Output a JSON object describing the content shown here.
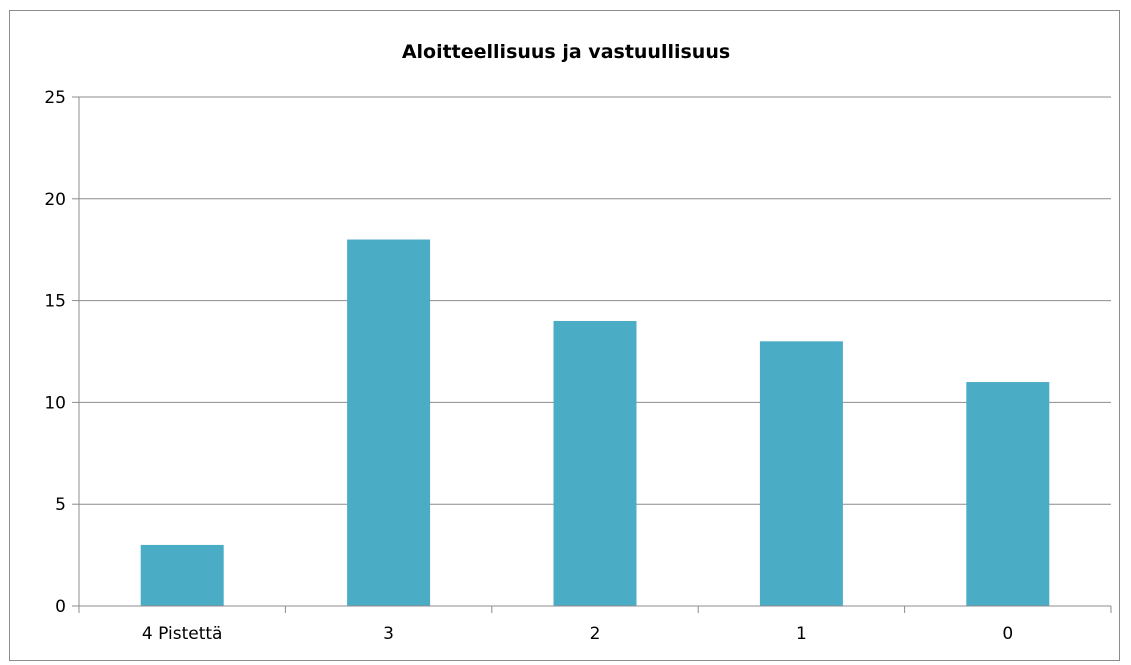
{
  "chart_data": {
    "type": "bar",
    "title": "Aloitteellisuus ja vastuullisuus",
    "xlabel": "",
    "ylabel": "",
    "categories": [
      "4 Pistettä",
      "3",
      "2",
      "1",
      "0"
    ],
    "series": [
      {
        "values": [
          3,
          18,
          14,
          13,
          11
        ],
        "color": "#4bacc6"
      }
    ],
    "ylim": [
      0,
      25
    ],
    "yticks": [
      "0",
      "5",
      "10",
      "15",
      "20",
      "25"
    ],
    "grid": true,
    "legend": "none"
  }
}
